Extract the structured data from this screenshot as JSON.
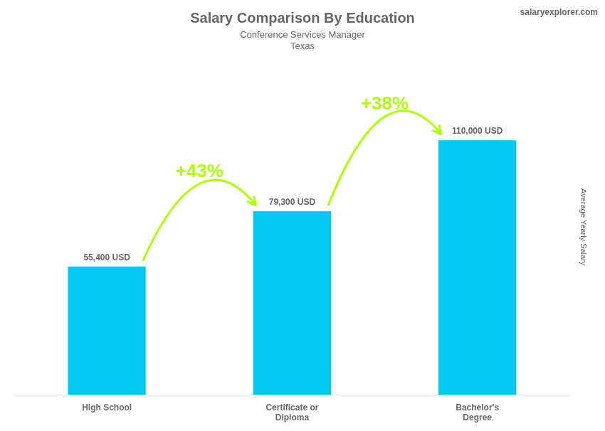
{
  "chart_data": {
    "type": "bar",
    "title": "Salary Comparison By Education",
    "subtitle": [
      "Conference Services Manager",
      "Texas"
    ],
    "ylabel": "Average Yearly Salary",
    "categories": [
      "High School",
      "Certificate or\nDiploma",
      "Bachelor's\nDegree"
    ],
    "values": [
      55400,
      79300,
      110000
    ],
    "value_labels": [
      "55,400 USD",
      "79,300 USD",
      "110,000 USD"
    ],
    "data_labels": true,
    "color": "#00c8f0",
    "ylim": [
      0,
      145000
    ],
    "grid": false,
    "tick_labels": "x",
    "annotations": [
      {
        "text": "+43%",
        "from": "High School",
        "to": "Certificate or\nDiploma",
        "color": "#aaff00"
      },
      {
        "text": "+38%",
        "from": "Certificate or\nDiploma",
        "to": "Bachelor's\nDegree",
        "color": "#aaff00"
      },
      {
        "text": "salaryexplorer.com"
      }
    ]
  }
}
